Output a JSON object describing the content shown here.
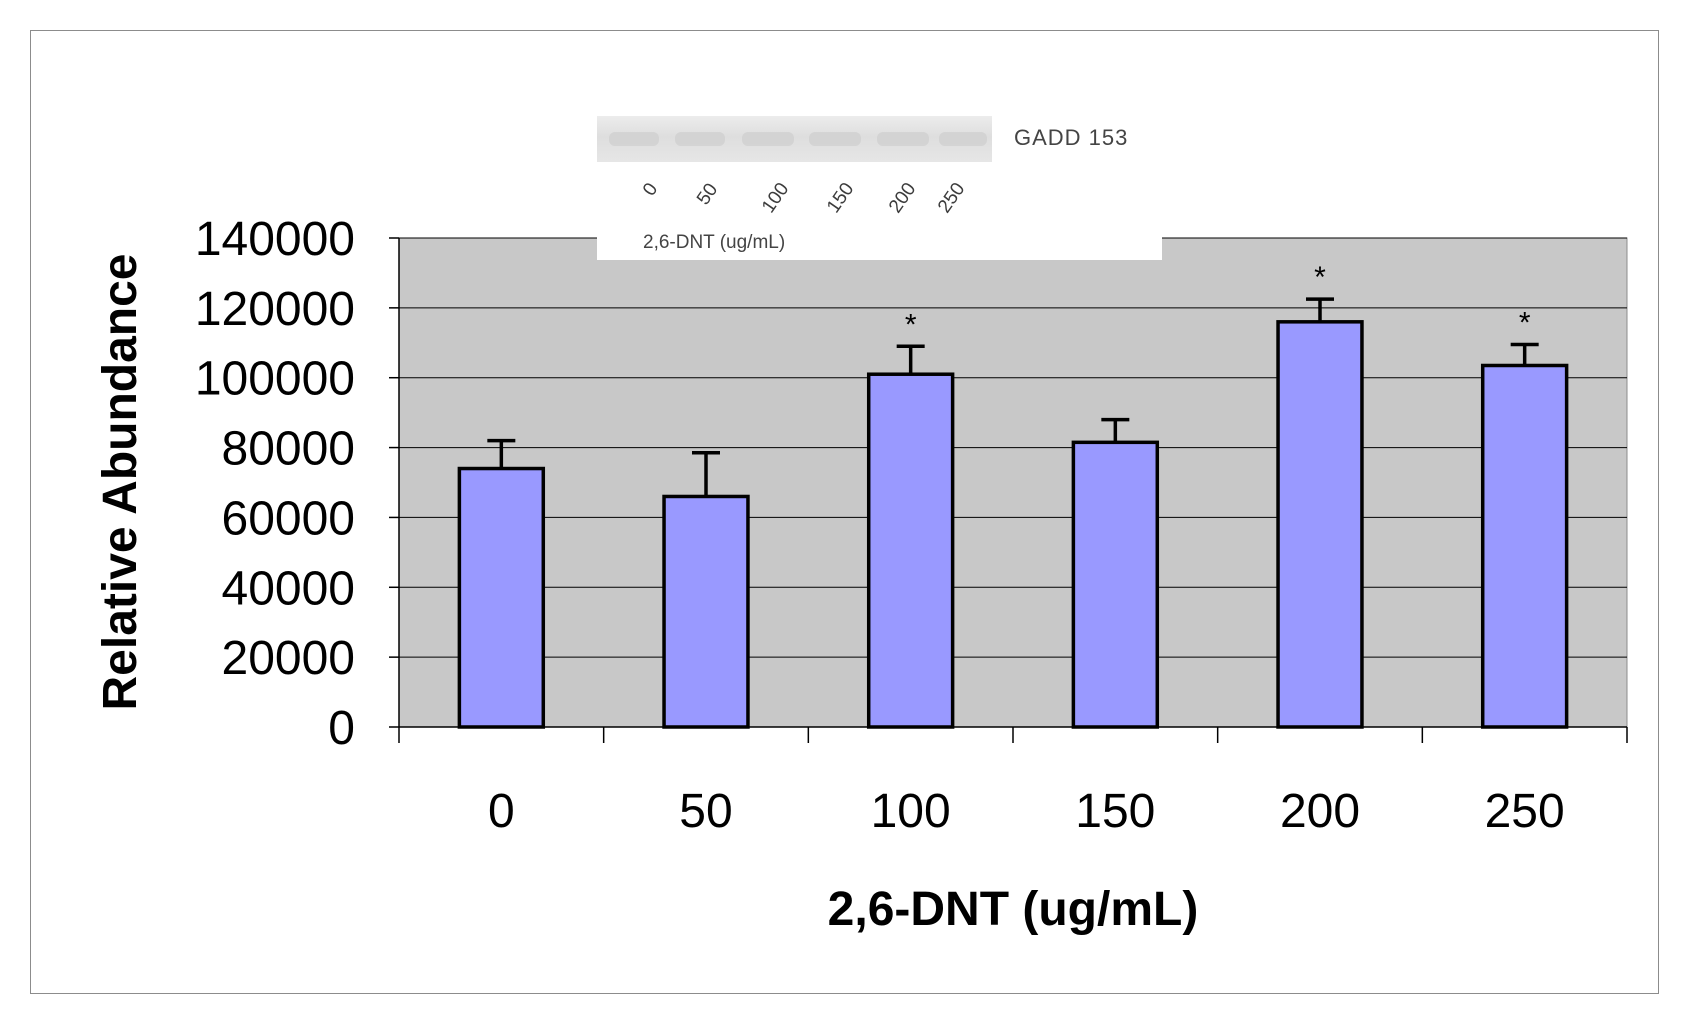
{
  "chart_data": {
    "type": "bar",
    "title": "",
    "xlabel": "2,6-DNT (ug/mL)",
    "ylabel": "Relative Abundance",
    "categories": [
      "0",
      "50",
      "100",
      "150",
      "200",
      "250"
    ],
    "values": [
      74000,
      66000,
      101000,
      81500,
      116000,
      103500
    ],
    "errors": [
      8000,
      12500,
      8000,
      6500,
      6500,
      6000
    ],
    "significance": [
      "",
      "",
      "*",
      "",
      "*",
      "*"
    ],
    "ylim": [
      0,
      140000
    ],
    "yticks": [
      "0",
      "20000",
      "40000",
      "60000",
      "80000",
      "100000",
      "120000",
      "140000"
    ],
    "grid": true,
    "colors": {
      "bar_fill": "#9999ff",
      "bar_stroke": "#000000",
      "plot_background": "#c8c8c8",
      "gridline": "#000000"
    }
  },
  "blot_inset": {
    "protein_label": "GADD 153",
    "lane_labels": [
      "0",
      "50",
      "100",
      "150",
      "200",
      "250"
    ],
    "xlabel": "2,6-DNT  (ug/mL)"
  }
}
